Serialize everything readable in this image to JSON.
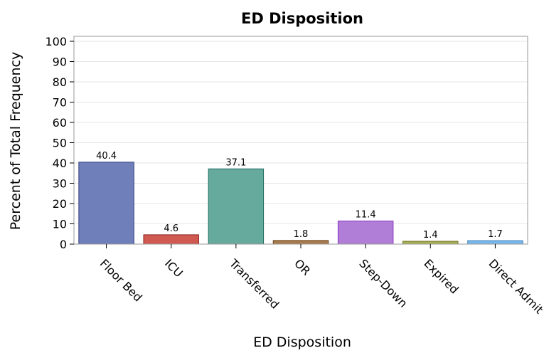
{
  "chart_data": {
    "type": "bar",
    "title": "ED Disposition",
    "xlabel": "ED Disposition",
    "ylabel": "Percent of Total Frequency",
    "ylim": [
      0,
      100
    ],
    "yticks": [
      0,
      10,
      20,
      30,
      40,
      50,
      60,
      70,
      80,
      90,
      100
    ],
    "grid": "horizontal",
    "categories": [
      "Floor Bed",
      "ICU",
      "Transferred",
      "OR",
      "Step-Down",
      "Expired",
      "Direct Admit"
    ],
    "values": [
      40.4,
      4.6,
      37.1,
      1.8,
      11.4,
      1.4,
      1.7
    ],
    "data_labels": [
      "40.4",
      "4.6",
      "37.1",
      "1.8",
      "11.4",
      "1.4",
      "1.7"
    ],
    "colors": [
      "#6f7fb9",
      "#d05a52",
      "#66a99d",
      "#a77b4c",
      "#b07ed6",
      "#a8ae53",
      "#7ab8e8"
    ],
    "edge_colors": [
      "#333f80",
      "#8f2520",
      "#1f6e63",
      "#6b431a",
      "#8a36c8",
      "#6a7020",
      "#3a7fc0"
    ]
  }
}
